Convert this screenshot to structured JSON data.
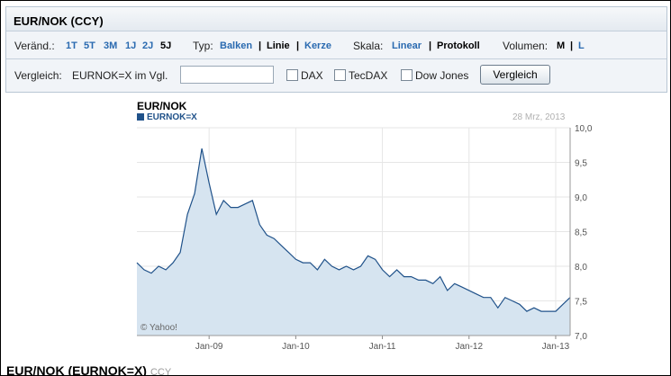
{
  "header": {
    "title": "EUR/NOK (CCY)"
  },
  "options": {
    "change_label": "Veränd.:",
    "periods": [
      "1T",
      "5T",
      "3M",
      "1J",
      "2J",
      "5J"
    ],
    "selected_period": "5J",
    "type_label": "Typ:",
    "types": [
      "Balken",
      "Linie",
      "Kerze"
    ],
    "selected_type": "Linie",
    "scale_label": "Skala:",
    "scales": [
      "Linear",
      "Protokoll"
    ],
    "selected_scale": "Protokoll",
    "volume_label": "Volumen:",
    "volumes": [
      "M",
      "L"
    ],
    "selected_volume": "M",
    "separator": "|"
  },
  "compare": {
    "label": "Vergleich:",
    "symbol_label": "EURNOK=X im Vgl.",
    "input_value": "",
    "checkboxes": [
      "DAX",
      "TecDAX",
      "Dow Jones"
    ],
    "button_label": "Vergleich"
  },
  "chart_data": {
    "type": "area",
    "title": "EUR/NOK",
    "series": [
      {
        "name": "EURNOK=X",
        "x": [
          "2008-03",
          "2008-04",
          "2008-05",
          "2008-06",
          "2008-07",
          "2008-08",
          "2008-09",
          "2008-10",
          "2008-11",
          "2008-12",
          "2009-01",
          "2009-02",
          "2009-03",
          "2009-04",
          "2009-05",
          "2009-06",
          "2009-07",
          "2009-08",
          "2009-09",
          "2009-10",
          "2009-11",
          "2009-12",
          "2010-01",
          "2010-02",
          "2010-03",
          "2010-04",
          "2010-05",
          "2010-06",
          "2010-07",
          "2010-08",
          "2010-09",
          "2010-10",
          "2010-11",
          "2010-12",
          "2011-01",
          "2011-02",
          "2011-03",
          "2011-04",
          "2011-05",
          "2011-06",
          "2011-07",
          "2011-08",
          "2011-09",
          "2011-10",
          "2011-11",
          "2011-12",
          "2012-01",
          "2012-02",
          "2012-03",
          "2012-04",
          "2012-05",
          "2012-06",
          "2012-07",
          "2012-08",
          "2012-09",
          "2012-10",
          "2012-11",
          "2012-12",
          "2013-01",
          "2013-02",
          "2013-03"
        ],
        "values": [
          8.05,
          7.95,
          7.9,
          8.0,
          7.95,
          8.05,
          8.2,
          8.75,
          9.05,
          9.7,
          9.2,
          8.75,
          8.95,
          8.85,
          8.85,
          8.9,
          8.95,
          8.6,
          8.45,
          8.4,
          8.3,
          8.2,
          8.1,
          8.05,
          8.05,
          7.95,
          8.1,
          8.0,
          7.95,
          8.0,
          7.95,
          8.0,
          8.15,
          8.1,
          7.95,
          7.85,
          7.95,
          7.85,
          7.85,
          7.8,
          7.8,
          7.75,
          7.85,
          7.65,
          7.75,
          7.7,
          7.65,
          7.6,
          7.55,
          7.55,
          7.4,
          7.55,
          7.5,
          7.45,
          7.35,
          7.4,
          7.35,
          7.35,
          7.35,
          7.45,
          7.55
        ],
        "color": "#20528a",
        "fill": "#d6e4f0"
      }
    ],
    "xticks": [
      "Jan-09",
      "Jan-10",
      "Jan-11",
      "Jan-12",
      "Jan-13"
    ],
    "yticks": [
      "7,0",
      "7,5",
      "8,0",
      "8,5",
      "9,0",
      "9,5",
      "10,0"
    ],
    "ylim": [
      7.0,
      10.0
    ],
    "date_label": "28 Mrz, 2013",
    "watermark": "© Yahoo!",
    "grid": true,
    "y_axis_side": "right"
  },
  "footer": {
    "title": "EUR/NOK (EURNOK=X)",
    "subtitle": "CCY"
  }
}
